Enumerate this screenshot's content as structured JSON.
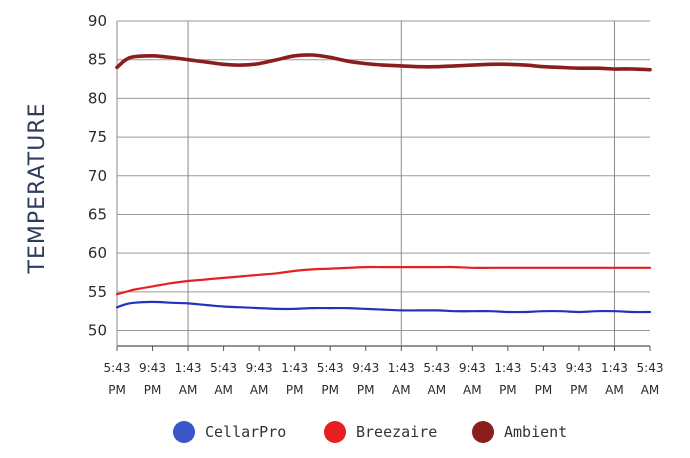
{
  "chart_data": {
    "type": "line",
    "title": "",
    "xlabel": "",
    "ylabel": "TEMPERATURE",
    "ylim": [
      48,
      90
    ],
    "yticks": [
      50,
      55,
      60,
      65,
      70,
      75,
      80,
      85,
      90
    ],
    "x_tick_labels": [
      [
        "5:43",
        "PM"
      ],
      [
        "9:43",
        "PM"
      ],
      [
        "1:43",
        "AM"
      ],
      [
        "5:43",
        "AM"
      ],
      [
        "9:43",
        "AM"
      ],
      [
        "1:43",
        "PM"
      ],
      [
        "5:43",
        "PM"
      ],
      [
        "9:43",
        "PM"
      ],
      [
        "1:43",
        "AM"
      ],
      [
        "5:43",
        "AM"
      ],
      [
        "9:43",
        "AM"
      ],
      [
        "1:43",
        "PM"
      ],
      [
        "5:43",
        "PM"
      ],
      [
        "9:43",
        "PM"
      ],
      [
        "1:43",
        "AM"
      ],
      [
        "5:43",
        "AM"
      ]
    ],
    "x_gridline_ticks": [
      0,
      2,
      8,
      14
    ],
    "grid": "horizontal gridlines at each y tick; vertical gridlines at selected ticks",
    "x": [
      0,
      0.25,
      0.5,
      1,
      1.5,
      2,
      2.5,
      3,
      3.5,
      4,
      4.5,
      5,
      5.5,
      6,
      6.5,
      7,
      7.5,
      8,
      8.5,
      9,
      9.5,
      10,
      10.5,
      11,
      11.5,
      12,
      12.5,
      13,
      13.5,
      14,
      14.5,
      15
    ],
    "series": [
      {
        "name": "CellarPro",
        "color": "#2233bb",
        "values": [
          53.0,
          53.4,
          53.6,
          53.7,
          53.6,
          53.5,
          53.3,
          53.1,
          53.0,
          52.9,
          52.8,
          52.8,
          52.9,
          52.9,
          52.9,
          52.8,
          52.7,
          52.6,
          52.6,
          52.6,
          52.5,
          52.5,
          52.5,
          52.4,
          52.4,
          52.5,
          52.5,
          52.4,
          52.5,
          52.5,
          52.4,
          52.4
        ]
      },
      {
        "name": "Breezaire",
        "color": "#e52020",
        "values": [
          54.7,
          55.0,
          55.3,
          55.7,
          56.1,
          56.4,
          56.6,
          56.8,
          57.0,
          57.2,
          57.4,
          57.7,
          57.9,
          58.0,
          58.1,
          58.2,
          58.2,
          58.2,
          58.2,
          58.2,
          58.2,
          58.1,
          58.1,
          58.1,
          58.1,
          58.1,
          58.1,
          58.1,
          58.1,
          58.1,
          58.1,
          58.1
        ]
      },
      {
        "name": "Ambient",
        "color": "#8b1d1d",
        "values": [
          84.0,
          85.0,
          85.4,
          85.5,
          85.3,
          85.0,
          84.7,
          84.4,
          84.3,
          84.5,
          85.0,
          85.5,
          85.6,
          85.3,
          84.8,
          84.5,
          84.3,
          84.2,
          84.1,
          84.1,
          84.2,
          84.3,
          84.4,
          84.4,
          84.3,
          84.1,
          84.0,
          83.9,
          83.9,
          83.8,
          83.8,
          83.7
        ]
      }
    ],
    "legend_position": "bottom"
  },
  "legend": [
    {
      "label": "CellarPro",
      "color": "#3a56c9"
    },
    {
      "label": "Breezaire",
      "color": "#e62020"
    },
    {
      "label": "Ambient",
      "color": "#8b1d1d"
    }
  ]
}
